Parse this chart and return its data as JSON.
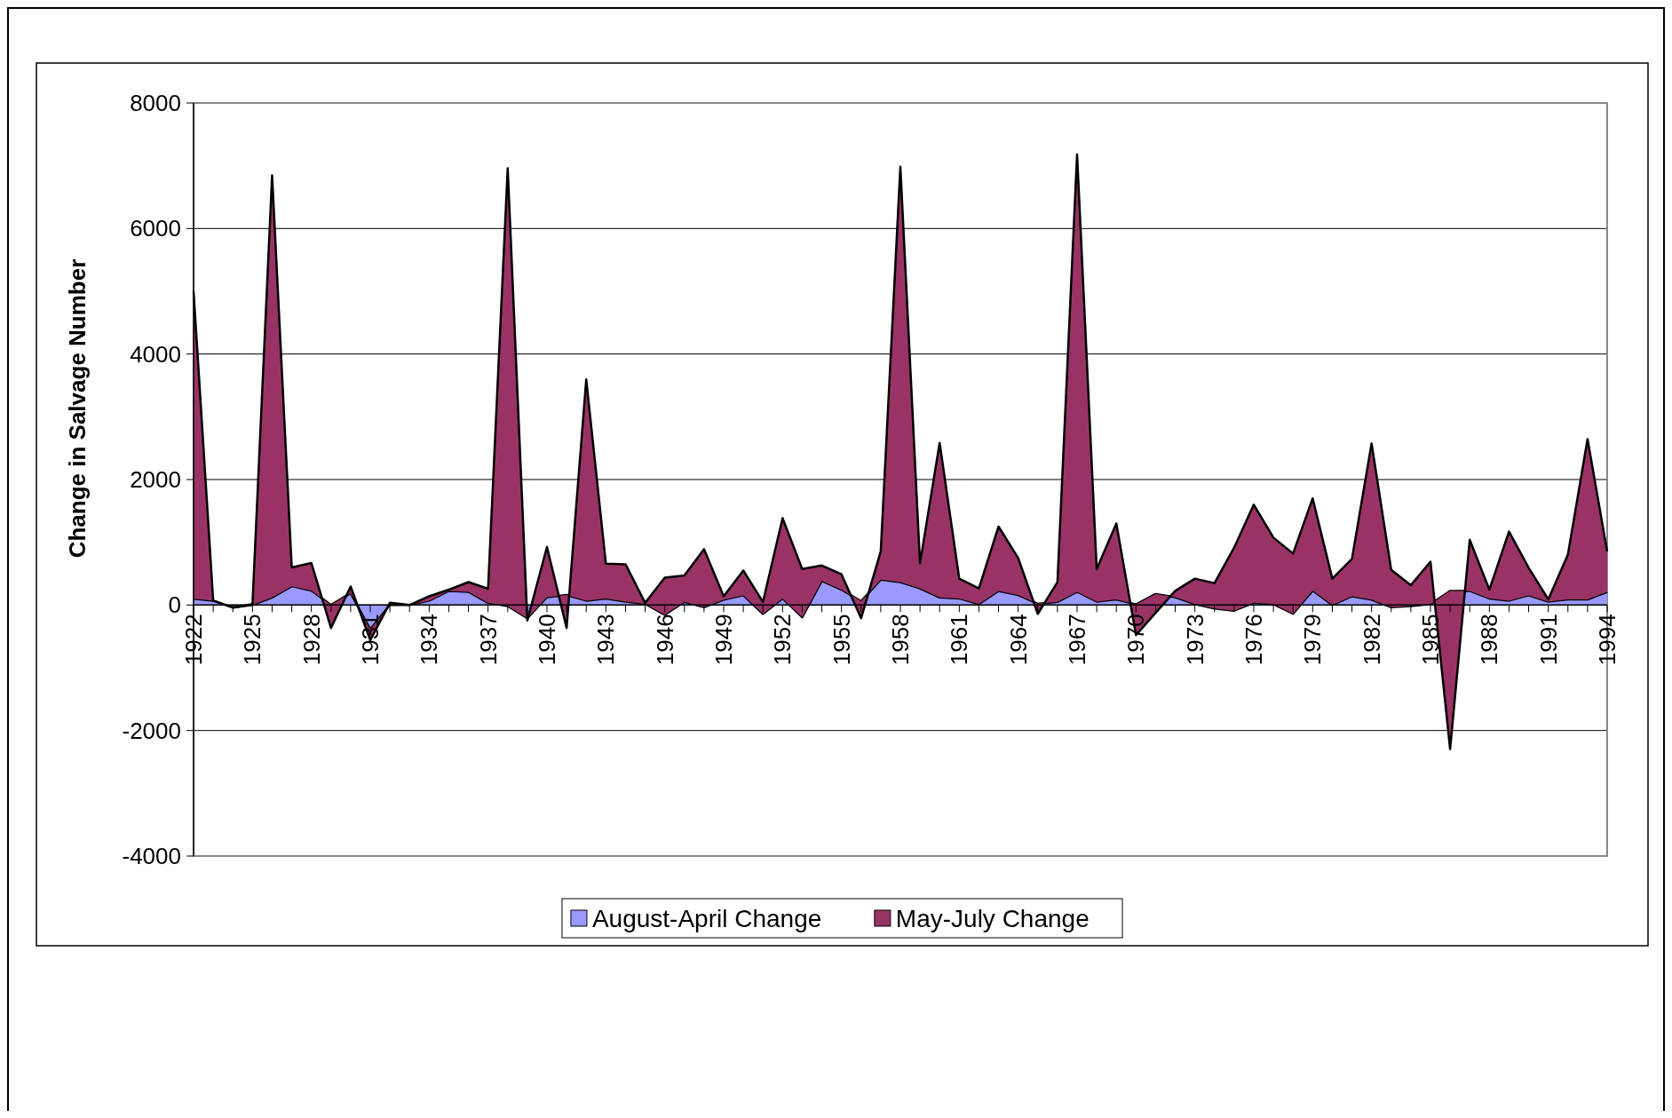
{
  "chart_data": {
    "type": "area",
    "stacked": true,
    "ylabel": "Change in Salvage Number",
    "categories": [
      "1922",
      null,
      null,
      "1925",
      null,
      null,
      "1928",
      null,
      null,
      "1931",
      null,
      null,
      "1934",
      null,
      null,
      "1937",
      null,
      null,
      "1940",
      null,
      null,
      "1943",
      null,
      null,
      "1946",
      null,
      null,
      "1949",
      null,
      null,
      "1952",
      null,
      null,
      "1955",
      null,
      null,
      "1958",
      null,
      null,
      "1961",
      null,
      null,
      "1964",
      null,
      null,
      "1967",
      null,
      null,
      "1970",
      null,
      null,
      "1973",
      null,
      null,
      "1976",
      null,
      null,
      "1979",
      null,
      null,
      "1982",
      null,
      null,
      "1985",
      null,
      null,
      "1988",
      null,
      null,
      "1991",
      null,
      null,
      "1994"
    ],
    "series": [
      {
        "name": "August-April Change",
        "color": "#9999ff",
        "values": [
          100,
          70,
          -40,
          0,
          120,
          300,
          230,
          0,
          190,
          -390,
          0,
          0,
          70,
          225,
          210,
          35,
          -15,
          -210,
          125,
          160,
          70,
          105,
          55,
          20,
          -155,
          50,
          -35,
          85,
          155,
          -140,
          105,
          -195,
          385,
          245,
          60,
          405,
          365,
          265,
          120,
          105,
          15,
          225,
          160,
          20,
          50,
          210,
          55,
          90,
          10,
          175,
          125,
          15,
          -55,
          -90,
          35,
          15,
          -140,
          230,
          0,
          140,
          85,
          -35,
          -15,
          15,
          225,
          225,
          105,
          70,
          155,
          55,
          90,
          90,
          210
        ]
      },
      {
        "name": "May-July Change",
        "color": "#993366",
        "values": [
          4900,
          0,
          0,
          15,
          6725,
          300,
          440,
          -365,
          105,
          -170,
          35,
          0,
          70,
          20,
          155,
          225,
          6975,
          -35,
          800,
          -525,
          3525,
          555,
          595,
          15,
          590,
          420,
          925,
          55,
          395,
          190,
          1280,
          770,
          245,
          245,
          -270,
          450,
          6620,
          400,
          2465,
          315,
          250,
          1025,
          590,
          -160,
          315,
          6970,
          520,
          1210,
          -490,
          -300,
          100,
          405,
          405,
          1005,
          1565,
          1060,
          960,
          1470,
          420,
          595,
          2490,
          595,
          330,
          675,
          -2520,
          815,
          140,
          1100,
          440,
          35,
          715,
          2555,
          645
        ]
      }
    ],
    "ylim": [
      -4000,
      8000
    ],
    "yticks": [
      -4000,
      -2000,
      0,
      2000,
      4000,
      6000,
      8000
    ],
    "grid": "y",
    "legend": "bottom"
  }
}
